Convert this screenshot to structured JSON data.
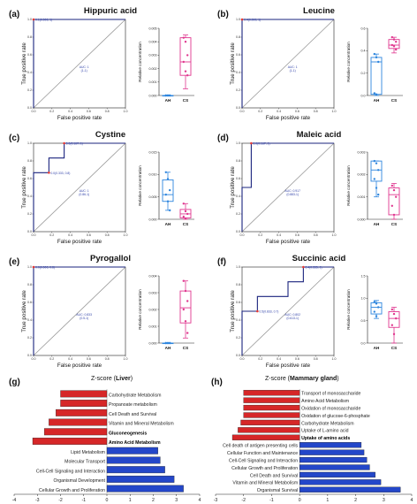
{
  "chart_data": [
    {
      "type": "line",
      "panel": "(a)",
      "title": "Hippuric acid",
      "xlabel": "False positive rate",
      "ylabel": "True positive rate",
      "xlim": [
        0,
        1
      ],
      "ylim": [
        0,
        1
      ],
      "roc": {
        "x": [
          0,
          0,
          1
        ],
        "y": [
          0,
          1,
          1
        ]
      },
      "cutoff_label": "0.1(0.000, 1)",
      "auc_label": "AUC: 1 (1-1)",
      "box": {
        "ylabel": "Relative concentration",
        "ylim": [
          0,
          0.005
        ],
        "yticks": [
          0,
          0.001,
          0.002,
          0.003,
          0.004,
          0.005
        ],
        "yticklabels": [
          "0.000",
          "0.001",
          "0.002",
          "0.003",
          "0.004",
          "0.005"
        ],
        "groups": [
          {
            "name": "AH",
            "color": "#2e86de",
            "q1": 0.0,
            "median": 0.0,
            "q3": 0.0,
            "min": 0.0,
            "max": 0.0,
            "points": [
              0,
              0,
              0,
              0,
              0,
              0
            ]
          },
          {
            "name": "CS",
            "color": "#e0378f",
            "q1": 0.0015,
            "median": 0.0025,
            "q3": 0.0043,
            "min": 0.0005,
            "max": 0.0045,
            "points": [
              0.0043,
              0.004,
              0.003,
              0.0025,
              0.0018,
              0.0015
            ]
          }
        ]
      }
    },
    {
      "type": "line",
      "panel": "(b)",
      "title": "Leucine",
      "xlabel": "False positive rate",
      "ylabel": "True positive rate",
      "xlim": [
        0,
        1
      ],
      "ylim": [
        0,
        1
      ],
      "roc": {
        "x": [
          0,
          0,
          1
        ],
        "y": [
          0,
          1,
          1
        ]
      },
      "cutoff_label": "0.4(0.000, 1)",
      "auc_label": "AUC: 1 (1-1)",
      "box": {
        "ylabel": "Relative concentration",
        "ylim": [
          0,
          0.6
        ],
        "yticks": [
          0,
          0.2,
          0.4,
          0.6
        ],
        "yticklabels": [
          "0.0",
          "0.2",
          "0.4",
          "0.6"
        ],
        "groups": [
          {
            "name": "AH",
            "color": "#2e86de",
            "q1": 0.01,
            "median": 0.3,
            "q3": 0.34,
            "min": 0.0,
            "max": 0.37,
            "points": [
              0.37,
              0.34,
              0.3,
              0.02,
              0.01
            ]
          },
          {
            "name": "CS",
            "color": "#e0378f",
            "q1": 0.42,
            "median": 0.45,
            "q3": 0.5,
            "min": 0.38,
            "max": 0.52,
            "points": [
              0.52,
              0.5,
              0.48,
              0.45,
              0.44,
              0.41
            ]
          }
        ]
      }
    },
    {
      "type": "line",
      "panel": "(c)",
      "title": "Cystine",
      "xlabel": "False positive rate",
      "ylabel": "True positive rate",
      "xlim": [
        0,
        1
      ],
      "ylim": [
        0,
        1
      ],
      "roc": {
        "x": [
          0,
          0,
          0.167,
          0.167,
          0.333,
          0.333,
          1
        ],
        "y": [
          0,
          0.667,
          0.667,
          0.833,
          0.833,
          1,
          1
        ]
      },
      "cutoff_label": "0.0(0.167, 1)",
      "cutoff2_label": "0.0(0.333, 0.8)",
      "auc_label": "AUC: 1 (0.86-1)",
      "box": {
        "ylabel": "Relative concentration",
        "ylim": [
          0,
          0.015
        ],
        "yticks": [
          0,
          0.005,
          0.01,
          0.015
        ],
        "yticklabels": [
          "0.000",
          "0.005",
          "0.010",
          "0.015"
        ],
        "groups": [
          {
            "name": "AH",
            "color": "#2e86de",
            "q1": 0.004,
            "median": 0.0055,
            "q3": 0.0088,
            "min": 0.002,
            "max": 0.0105,
            "points": [
              0.0105,
              0.009,
              0.0065,
              0.0055,
              0.004,
              0.002
            ]
          },
          {
            "name": "CS",
            "color": "#e0378f",
            "q1": 0.0003,
            "median": 0.0012,
            "q3": 0.0022,
            "min": 0.0,
            "max": 0.0035,
            "points": [
              0.0035,
              0.0018,
              0.0012,
              0.0006,
              0.0002
            ]
          }
        ]
      }
    },
    {
      "type": "line",
      "panel": "(d)",
      "title": "Maleic acid",
      "xlabel": "False positive rate",
      "ylabel": "True positive rate",
      "xlim": [
        0,
        1
      ],
      "ylim": [
        0,
        1
      ],
      "roc": {
        "x": [
          0,
          0,
          0.1,
          0.1,
          1
        ],
        "y": [
          0,
          0.5,
          0.5,
          1,
          1
        ]
      },
      "cutoff_label": "0.0(0.167, 1)",
      "auc_label": "AUC: 0.917 (0.883-1)",
      "box": {
        "ylabel": "Relative concentration",
        "ylim": [
          0,
          0.003
        ],
        "yticks": [
          0,
          0.001,
          0.002,
          0.003
        ],
        "yticklabels": [
          "0.000",
          "0.001",
          "0.002",
          "0.003"
        ],
        "groups": [
          {
            "name": "AH",
            "color": "#2e86de",
            "q1": 0.0017,
            "median": 0.0022,
            "q3": 0.0026,
            "min": 0.001,
            "max": 0.0026,
            "points": [
              0.0026,
              0.0025,
              0.0022,
              0.0018,
              0.0014,
              0.0011
            ]
          },
          {
            "name": "CS",
            "color": "#e0378f",
            "q1": 0.0002,
            "median": 0.0011,
            "q3": 0.0014,
            "min": 0.0,
            "max": 0.0016,
            "points": [
              0.0015,
              0.0013,
              0.001,
              0.0006,
              0.0002
            ]
          }
        ]
      }
    },
    {
      "type": "line",
      "panel": "(e)",
      "title": "Pyrogallol",
      "xlabel": "False positive rate",
      "ylabel": "True positive rate",
      "xlim": [
        0,
        1
      ],
      "ylim": [
        0,
        1
      ],
      "roc": {
        "x": [
          0,
          0,
          1
        ],
        "y": [
          0,
          1,
          1
        ]
      },
      "cutoff_label": "0.0(0.000, 0.8)",
      "auc_label": "AUC: 0.833 (0.5-1)",
      "box": {
        "ylabel": "Relative concentration",
        "ylim": [
          0,
          0.004
        ],
        "yticks": [
          0,
          0.001,
          0.002,
          0.003,
          0.004
        ],
        "yticklabels": [
          "0.000",
          "0.001",
          "0.002",
          "0.003",
          "0.004"
        ],
        "groups": [
          {
            "name": "AH",
            "color": "#2e86de",
            "q1": 0.0,
            "median": 0.0,
            "q3": 0.0,
            "min": 0.0,
            "max": 0.0,
            "points": [
              0,
              0,
              0,
              0,
              0,
              0
            ]
          },
          {
            "name": "CS",
            "color": "#e0378f",
            "q1": 0.0012,
            "median": 0.0021,
            "q3": 0.0031,
            "min": 0.0003,
            "max": 0.0037,
            "points": [
              0.0037,
              0.0031,
              0.0025,
              0.002,
              0.0013,
              0.0006
            ]
          }
        ]
      }
    },
    {
      "type": "line",
      "panel": "(f)",
      "title": "Succinic acid",
      "xlabel": "False positive rate",
      "ylabel": "True positive rate",
      "xlim": [
        0,
        1
      ],
      "ylim": [
        0,
        1
      ],
      "roc": {
        "x": [
          0,
          0,
          0.167,
          0.167,
          0.5,
          0.5,
          0.667,
          0.667,
          1
        ],
        "y": [
          0,
          0.5,
          0.5,
          0.667,
          0.667,
          0.833,
          0.833,
          1,
          1
        ]
      },
      "cutoff_label": "0.4(0.333, 1)",
      "cutoff2_label": "0.5(0.833, 0.7)",
      "auc_label": "AUC: 0.802 (0.613-1)",
      "box": {
        "ylabel": "Relative concentration",
        "ylim": [
          0,
          1.5
        ],
        "yticks": [
          0,
          0.5,
          1,
          1.5
        ],
        "yticklabels": [
          "0.0",
          "0.5",
          "1.0",
          "1.5"
        ],
        "groups": [
          {
            "name": "AH",
            "color": "#2e86de",
            "q1": 0.65,
            "median": 0.8,
            "q3": 0.9,
            "min": 0.55,
            "max": 0.95,
            "points": [
              0.92,
              0.88,
              0.8,
              0.7,
              0.6
            ]
          },
          {
            "name": "CS",
            "color": "#e0378f",
            "q1": 0.35,
            "median": 0.55,
            "q3": 0.7,
            "min": 0.0,
            "max": 0.8,
            "points": [
              0.75,
              0.65,
              0.55,
              0.4,
              0.2
            ]
          }
        ]
      }
    },
    {
      "type": "bar",
      "panel": "(g)",
      "title": "Z-score (Liver)",
      "title_prefix": "Z-score (",
      "title_bold": "Liver",
      "title_suffix": ")",
      "xlim": [
        -4,
        4
      ],
      "xticks": [
        -4,
        -3,
        -2,
        -1,
        0,
        1,
        2,
        3,
        4
      ],
      "categories": [
        "Carbohydrate Metabolism",
        "Propanoate metabolism",
        "Cell Death and Survival",
        "Vitamin and Mineral Metabolism",
        "Gluconeogenesis",
        "Amino Acid Metabolism",
        "Lipid Metabolism",
        "Molecular Transport",
        "Cell-Cell Signaling and Interaction",
        "Organismal Development",
        "Cellular Growth and Proliferation"
      ],
      "values": [
        -2.0,
        -2.0,
        -2.2,
        -2.5,
        -2.7,
        -3.2,
        2.2,
        2.3,
        2.5,
        2.9,
        3.3
      ],
      "bold": [
        false,
        false,
        false,
        false,
        true,
        true,
        false,
        false,
        false,
        false,
        false
      ]
    },
    {
      "type": "bar",
      "panel": "(h)",
      "title": "Z-score (Mammary gland)",
      "title_prefix": "Z-score (",
      "title_bold": "Mammary gland",
      "title_suffix": ")",
      "xlim": [
        -3,
        4
      ],
      "xticks": [
        -3,
        -2,
        -1,
        0,
        1,
        2,
        3,
        4
      ],
      "categories": [
        "Transport of monosaccharide",
        "Amino Acid Metabolism",
        "Oxidation of monosaccharide",
        "Oxidation of glucose-6-phosphate",
        "Carbohydrate Metabolism",
        "Uptake of L-amino acid",
        "Uptake of amino acids",
        "Cell death of antigen presenting cells",
        "Cellular Function and Maintenance",
        "Cell-Cell Signaling and Interaction",
        "Cellular Growth and Proliferation",
        "Cell Death and Survival",
        "Vitamin and Mineral Metabolism",
        "Organismal Survival"
      ],
      "values": [
        -2.0,
        -2.0,
        -2.0,
        -2.0,
        -2.1,
        -2.2,
        -2.4,
        2.2,
        2.3,
        2.4,
        2.5,
        2.7,
        2.9,
        3.6
      ],
      "bold": [
        false,
        false,
        false,
        false,
        false,
        false,
        true,
        false,
        false,
        false,
        false,
        false,
        false,
        false
      ]
    }
  ]
}
